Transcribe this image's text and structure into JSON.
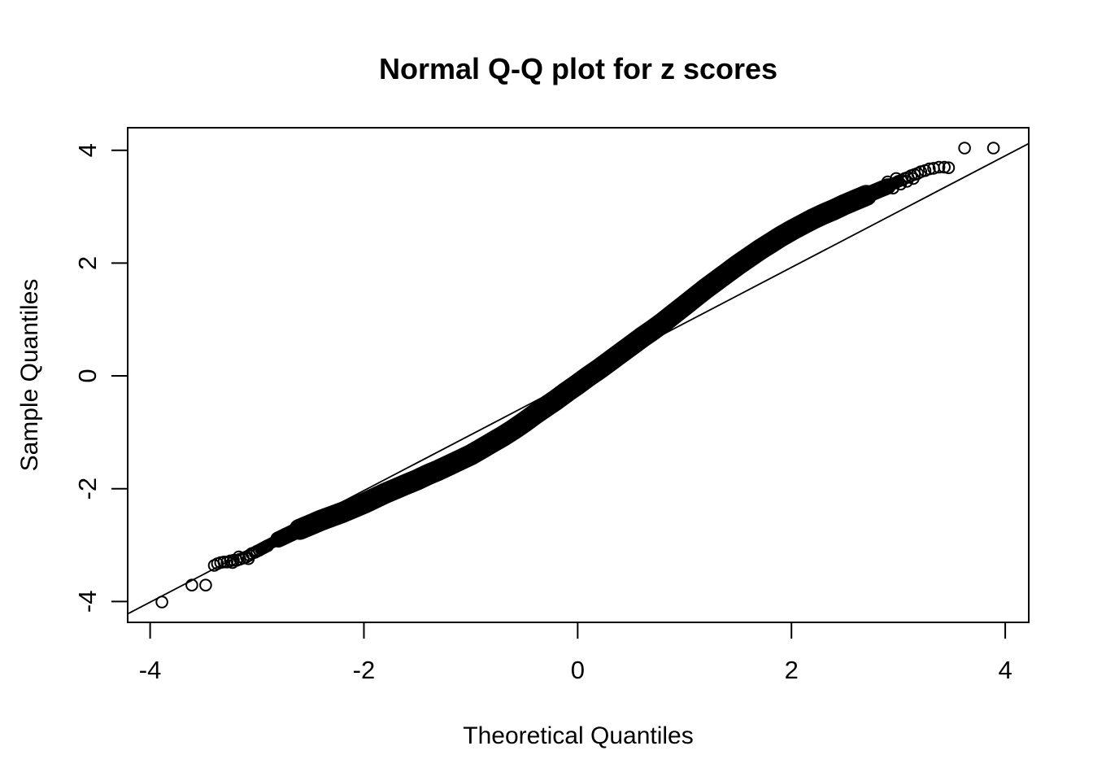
{
  "chart_data": {
    "type": "scatter",
    "title": "Normal Q-Q plot for z scores",
    "xlabel": "Theoretical Quantiles",
    "ylabel": "Sample Quantiles",
    "xlim": [
      -4.21,
      4.22
    ],
    "ylim": [
      -4.37,
      4.4
    ],
    "xticks": [
      -4,
      -2,
      0,
      2,
      4
    ],
    "yticks": [
      -4,
      -2,
      0,
      2,
      4
    ],
    "grid": false,
    "legend": null,
    "marker": "open-circle",
    "marker_radius_px": 6.8,
    "colors": {
      "points": "#000000",
      "reference_line": "#000000",
      "axis": "#000000",
      "background": "#ffffff"
    },
    "reference_line": {
      "x1": -4.21,
      "y1": -4.22,
      "x2": 4.22,
      "y2": 4.12
    },
    "band": {
      "comment": "dense overlapping points rendered as tapered thick curve",
      "segments": [
        {
          "width": 14,
          "range": [
            -2.97,
            3.0
          ]
        },
        {
          "width": 20,
          "range": [
            -2.85,
            2.92
          ]
        },
        {
          "width": 26,
          "range": [
            -2.6,
            2.78
          ]
        }
      ]
    },
    "curve_points": [
      [
        -2.97,
        -3.07
      ],
      [
        -2.9,
        -3.0
      ],
      [
        -2.8,
        -2.9
      ],
      [
        -2.7,
        -2.81
      ],
      [
        -2.6,
        -2.72
      ],
      [
        -2.5,
        -2.64
      ],
      [
        -2.4,
        -2.56
      ],
      [
        -2.3,
        -2.49
      ],
      [
        -2.2,
        -2.42
      ],
      [
        -2.1,
        -2.34
      ],
      [
        -2.0,
        -2.26
      ],
      [
        -1.9,
        -2.17
      ],
      [
        -1.8,
        -2.08
      ],
      [
        -1.7,
        -2.0
      ],
      [
        -1.6,
        -1.92
      ],
      [
        -1.5,
        -1.84
      ],
      [
        -1.4,
        -1.75
      ],
      [
        -1.3,
        -1.67
      ],
      [
        -1.2,
        -1.58
      ],
      [
        -1.1,
        -1.49
      ],
      [
        -1.0,
        -1.4
      ],
      [
        -0.9,
        -1.29
      ],
      [
        -0.8,
        -1.18
      ],
      [
        -0.7,
        -1.07
      ],
      [
        -0.6,
        -0.95
      ],
      [
        -0.5,
        -0.82
      ],
      [
        -0.4,
        -0.68
      ],
      [
        -0.3,
        -0.55
      ],
      [
        -0.2,
        -0.42
      ],
      [
        -0.1,
        -0.28
      ],
      [
        0,
        -0.15
      ],
      [
        0.1,
        -0.01
      ],
      [
        0.2,
        0.12
      ],
      [
        0.3,
        0.26
      ],
      [
        0.4,
        0.4
      ],
      [
        0.5,
        0.54
      ],
      [
        0.6,
        0.68
      ],
      [
        0.7,
        0.81
      ],
      [
        0.8,
        0.95
      ],
      [
        0.9,
        1.1
      ],
      [
        1.0,
        1.25
      ],
      [
        1.1,
        1.4
      ],
      [
        1.2,
        1.55
      ],
      [
        1.3,
        1.69
      ],
      [
        1.4,
        1.83
      ],
      [
        1.5,
        1.97
      ],
      [
        1.6,
        2.1
      ],
      [
        1.7,
        2.23
      ],
      [
        1.8,
        2.35
      ],
      [
        1.9,
        2.47
      ],
      [
        2.0,
        2.58
      ],
      [
        2.1,
        2.68
      ],
      [
        2.2,
        2.78
      ],
      [
        2.3,
        2.87
      ],
      [
        2.4,
        2.95
      ],
      [
        2.5,
        3.04
      ],
      [
        2.6,
        3.12
      ],
      [
        2.7,
        3.2
      ],
      [
        2.8,
        3.28
      ],
      [
        2.9,
        3.36
      ],
      [
        3.0,
        3.44
      ]
    ],
    "left_tail_points": [
      [
        -3.89,
        -4.01
      ],
      [
        -3.61,
        -3.71
      ],
      [
        -3.48,
        -3.71
      ],
      [
        -3.4,
        -3.36
      ],
      [
        -3.37,
        -3.33
      ],
      [
        -3.34,
        -3.31
      ],
      [
        -3.31,
        -3.3
      ],
      [
        -3.28,
        -3.3
      ],
      [
        -3.25,
        -3.28
      ],
      [
        -3.23,
        -3.31
      ],
      [
        -3.22,
        -3.27
      ],
      [
        -3.19,
        -3.27
      ],
      [
        -3.17,
        -3.21
      ],
      [
        -3.16,
        -3.25
      ],
      [
        -3.13,
        -3.23
      ],
      [
        -3.1,
        -3.21
      ],
      [
        -3.08,
        -3.24
      ],
      [
        -3.07,
        -3.18
      ],
      [
        -3.05,
        -3.15
      ],
      [
        -3.02,
        -3.13
      ],
      [
        -3.0,
        -3.11
      ],
      [
        -2.98,
        -3.09
      ],
      [
        -2.96,
        -3.07
      ],
      [
        -2.94,
        -3.05
      ],
      [
        -2.92,
        -3.03
      ],
      [
        -2.9,
        -3.01
      ]
    ],
    "right_tail_points": [
      [
        2.82,
        3.3
      ],
      [
        2.85,
        3.33
      ],
      [
        2.88,
        3.35
      ],
      [
        2.9,
        3.44
      ],
      [
        2.91,
        3.37
      ],
      [
        2.94,
        3.4
      ],
      [
        2.95,
        3.33
      ],
      [
        2.97,
        3.42
      ],
      [
        2.98,
        3.5
      ],
      [
        3.0,
        3.45
      ],
      [
        3.02,
        3.4
      ],
      [
        3.03,
        3.47
      ],
      [
        3.06,
        3.5
      ],
      [
        3.08,
        3.45
      ],
      [
        3.09,
        3.52
      ],
      [
        3.12,
        3.55
      ],
      [
        3.14,
        3.5
      ],
      [
        3.15,
        3.57
      ],
      [
        3.18,
        3.59
      ],
      [
        3.21,
        3.62
      ],
      [
        3.25,
        3.64
      ],
      [
        3.29,
        3.67
      ],
      [
        3.33,
        3.68
      ],
      [
        3.38,
        3.7
      ],
      [
        3.43,
        3.7
      ],
      [
        3.47,
        3.69
      ],
      [
        3.62,
        4.04
      ],
      [
        3.89,
        4.04
      ]
    ]
  }
}
